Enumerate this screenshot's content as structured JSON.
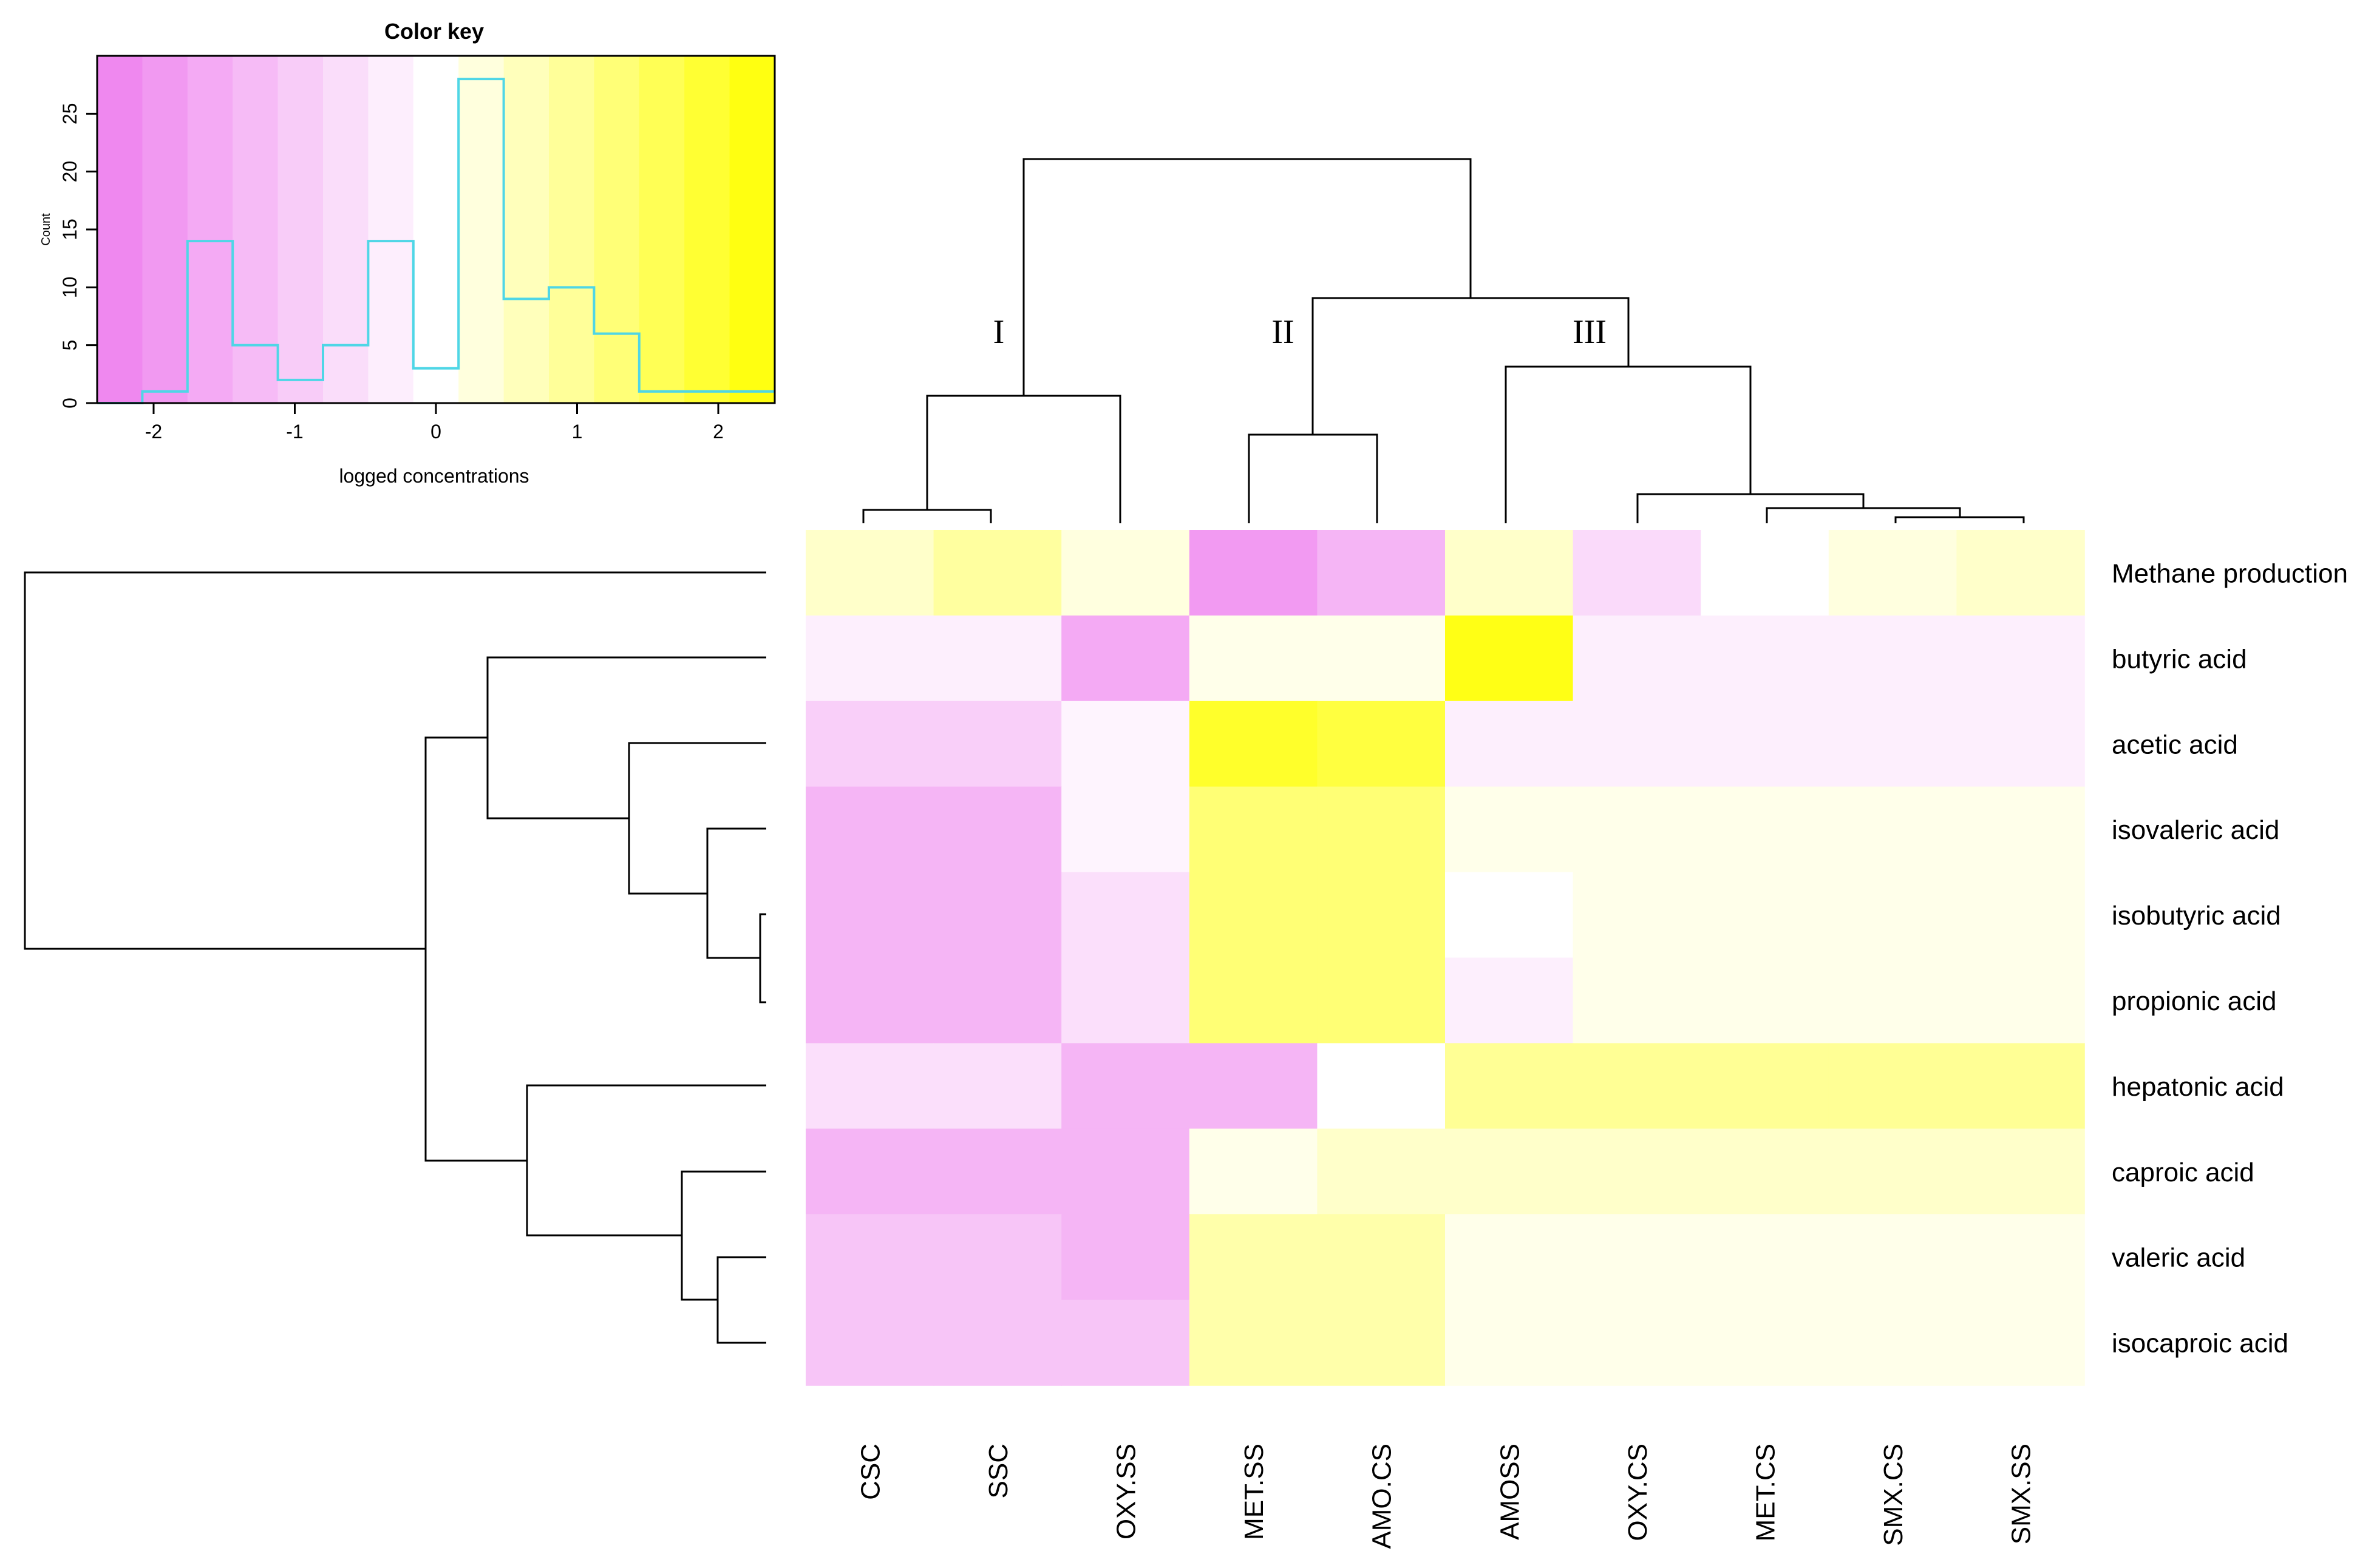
{
  "chart_data": {
    "type": "heatmap",
    "columns": [
      "CSC",
      "SSC",
      "OXY.SS",
      "MET.SS",
      "AMO.CS",
      "AMOSS",
      "OXY.CS",
      "MET.CS",
      "SMX.CS",
      "SMX.SS"
    ],
    "rows": [
      "Methane production",
      "butyric acid",
      "acetic acid",
      "isovaleric acid",
      "isobutyric acid",
      "propionic acid",
      "hepatonic acid",
      "caproic acid",
      "valeric acid",
      "isocaproic acid"
    ],
    "values": [
      [
        0.5,
        0.9,
        0.3,
        -1.9,
        -1.4,
        0.5,
        -0.7,
        0.0,
        0.3,
        0.5
      ],
      [
        -0.3,
        -0.3,
        -1.6,
        0.2,
        0.2,
        2.2,
        -0.3,
        -0.3,
        -0.3,
        -0.3
      ],
      [
        -0.9,
        -0.9,
        -0.2,
        2.0,
        1.8,
        -0.3,
        -0.3,
        -0.3,
        -0.3,
        -0.3
      ],
      [
        -1.4,
        -1.4,
        -0.2,
        1.3,
        1.3,
        0.2,
        0.2,
        0.2,
        0.2,
        0.2
      ],
      [
        -1.4,
        -1.4,
        -0.6,
        1.3,
        1.3,
        0.0,
        0.2,
        0.2,
        0.2,
        0.2
      ],
      [
        -1.4,
        -1.4,
        -0.6,
        1.3,
        1.3,
        -0.3,
        0.2,
        0.2,
        0.2,
        0.2
      ],
      [
        -0.6,
        -0.6,
        -1.4,
        -1.4,
        0.0,
        1.0,
        1.0,
        1.0,
        1.0,
        1.0
      ],
      [
        -1.4,
        -1.4,
        -1.4,
        0.2,
        0.5,
        0.5,
        0.5,
        0.5,
        0.5,
        0.5
      ],
      [
        -1.1,
        -1.1,
        -1.4,
        0.8,
        0.8,
        0.2,
        0.2,
        0.2,
        0.2,
        0.2
      ],
      [
        -1.1,
        -1.1,
        -1.1,
        0.8,
        0.8,
        0.2,
        0.2,
        0.2,
        0.2,
        0.2
      ]
    ],
    "color_range": [
      -2.4,
      2.4
    ],
    "colors": {
      "low": "#ee80ee",
      "mid": "#ffffff",
      "high": "#ffff00"
    },
    "cluster_labels": [
      "I",
      "II",
      "III"
    ],
    "color_key": {
      "title": "Color key",
      "xlabel": "logged concentrations",
      "ylabel": "Count",
      "xlim": [
        -2.4,
        2.4
      ],
      "ylim": [
        0,
        30
      ],
      "xticks": [
        -2,
        -1,
        0,
        1,
        2
      ],
      "yticks": [
        0,
        5,
        10,
        15,
        20,
        25
      ],
      "bins": 15,
      "hist_counts": [
        0,
        1,
        14,
        5,
        2,
        5,
        14,
        3,
        28,
        9,
        10,
        6,
        1,
        1,
        1
      ],
      "hist_color": "#4fd6e6"
    }
  }
}
